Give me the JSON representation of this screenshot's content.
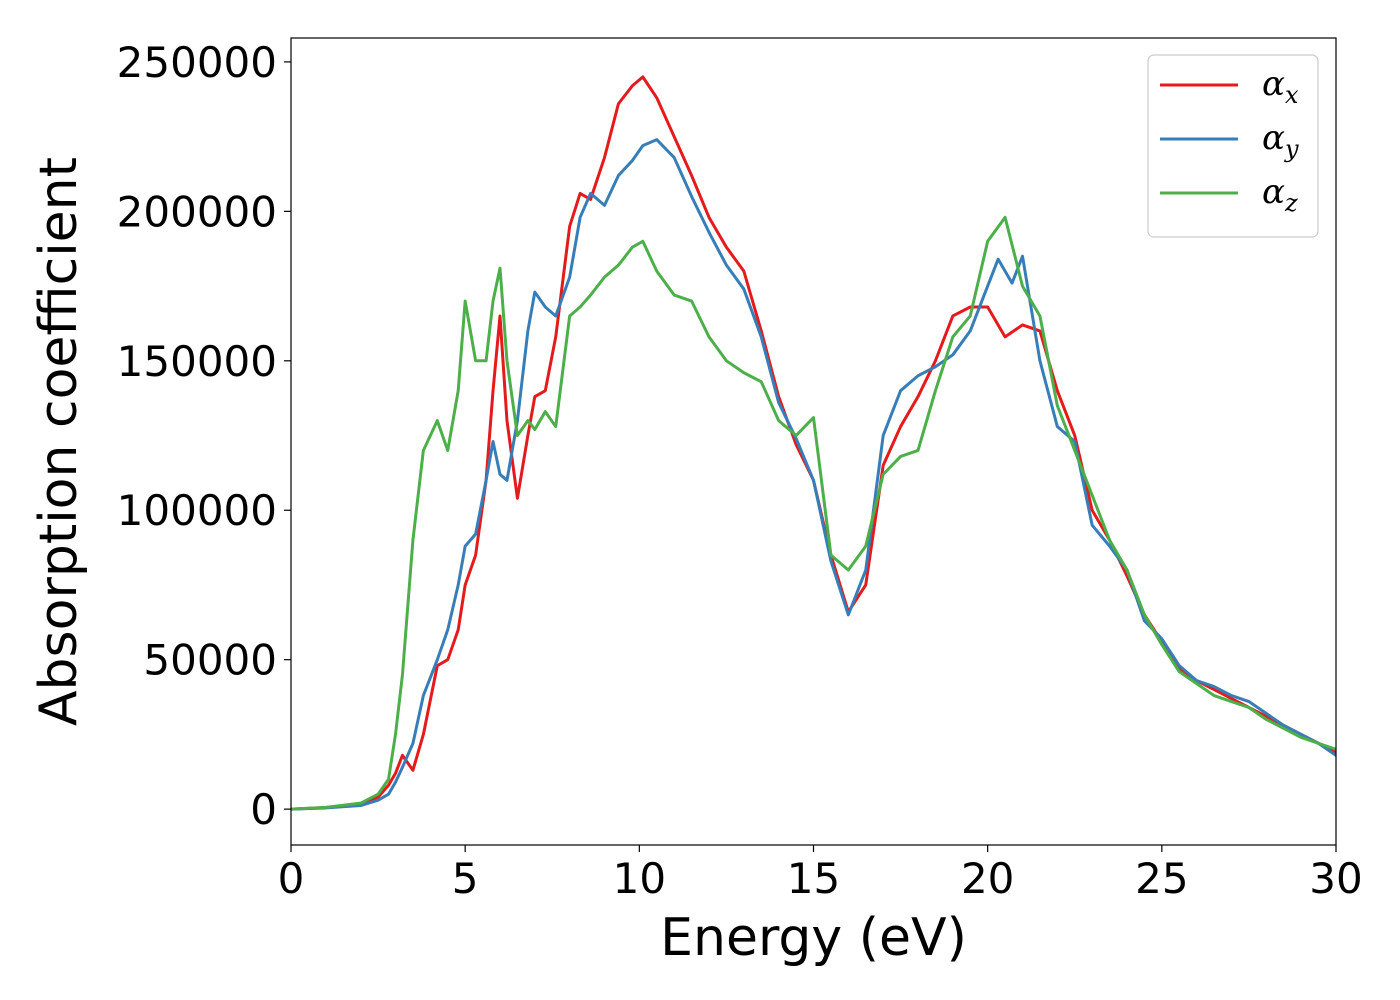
{
  "chart_data": {
    "type": "line",
    "xlabel": "Energy (eV)",
    "ylabel": "Absorption coefficient",
    "xlim": [
      0,
      30
    ],
    "ylim": [
      -12000,
      258000
    ],
    "xticks": [
      0,
      5,
      10,
      15,
      20,
      25,
      30
    ],
    "yticks": [
      0,
      50000,
      100000,
      150000,
      200000,
      250000
    ],
    "grid": false,
    "legend_position": "top-right",
    "series": [
      {
        "name": "α_x",
        "legend_base": "α",
        "legend_sub": "x",
        "color": "#e41a1c",
        "x": [
          0,
          1,
          2,
          2.5,
          2.8,
          3.0,
          3.2,
          3.5,
          3.8,
          4.2,
          4.5,
          4.8,
          5.0,
          5.3,
          5.6,
          5.8,
          6.0,
          6.2,
          6.5,
          6.8,
          7.0,
          7.3,
          7.6,
          8.0,
          8.3,
          8.6,
          9.0,
          9.4,
          9.8,
          10.1,
          10.5,
          11.0,
          11.5,
          12.0,
          12.5,
          13.0,
          13.5,
          14.0,
          14.5,
          15.0,
          15.5,
          16.0,
          16.5,
          17.0,
          17.5,
          18.0,
          18.5,
          19.0,
          19.5,
          20.0,
          20.5,
          21.0,
          21.5,
          22.0,
          22.5,
          23.0,
          23.5,
          24.0,
          24.5,
          25.0,
          25.5,
          26.0,
          26.5,
          27.0,
          27.5,
          28.0,
          28.5,
          29.0,
          29.5,
          30.0
        ],
        "y": [
          0,
          500,
          1500,
          4000,
          8000,
          12000,
          18000,
          13000,
          25000,
          48000,
          50000,
          60000,
          75000,
          85000,
          110000,
          140000,
          165000,
          130000,
          104000,
          125000,
          138000,
          140000,
          158000,
          195000,
          206000,
          204000,
          218000,
          236000,
          242000,
          245000,
          238000,
          225000,
          212000,
          198000,
          188000,
          180000,
          160000,
          138000,
          122000,
          110000,
          85000,
          66000,
          75000,
          115000,
          128000,
          138000,
          150000,
          165000,
          168000,
          168000,
          158000,
          162000,
          160000,
          140000,
          125000,
          100000,
          90000,
          78000,
          65000,
          56000,
          47000,
          43000,
          40000,
          37000,
          34000,
          31000,
          28000,
          25000,
          22000,
          19000
        ]
      },
      {
        "name": "α_y",
        "legend_base": "α",
        "legend_sub": "y",
        "color": "#377eb8",
        "x": [
          0,
          1,
          2,
          2.5,
          2.8,
          3.0,
          3.2,
          3.5,
          3.8,
          4.2,
          4.5,
          4.8,
          5.0,
          5.3,
          5.6,
          5.8,
          6.0,
          6.2,
          6.5,
          6.8,
          7.0,
          7.3,
          7.6,
          8.0,
          8.3,
          8.6,
          9.0,
          9.4,
          9.8,
          10.1,
          10.5,
          11.0,
          11.5,
          12.0,
          12.5,
          13.0,
          13.5,
          14.0,
          14.5,
          15.0,
          15.5,
          16.0,
          16.5,
          17.0,
          17.5,
          18.0,
          18.5,
          19.0,
          19.5,
          20.0,
          20.3,
          20.7,
          21.0,
          21.5,
          22.0,
          22.5,
          23.0,
          23.5,
          24.0,
          24.5,
          25.0,
          25.5,
          26.0,
          26.5,
          27.0,
          27.5,
          28.0,
          28.5,
          29.0,
          29.5,
          30.0
        ],
        "y": [
          0,
          400,
          1200,
          3000,
          5000,
          9000,
          14000,
          22000,
          38000,
          50000,
          60000,
          75000,
          88000,
          92000,
          110000,
          123000,
          112000,
          110000,
          130000,
          160000,
          173000,
          168000,
          165000,
          178000,
          198000,
          206000,
          202000,
          212000,
          217000,
          222000,
          224000,
          218000,
          205000,
          193000,
          182000,
          174000,
          158000,
          136000,
          124000,
          110000,
          83000,
          65000,
          80000,
          125000,
          140000,
          145000,
          148000,
          152000,
          160000,
          175000,
          184000,
          176000,
          185000,
          150000,
          128000,
          123000,
          95000,
          88000,
          80000,
          63000,
          57000,
          48000,
          43000,
          41000,
          38000,
          36000,
          32000,
          28000,
          25000,
          22000,
          18000
        ]
      },
      {
        "name": "α_z",
        "legend_base": "α",
        "legend_sub": "z",
        "color": "#4daf4a",
        "x": [
          0,
          1,
          2,
          2.5,
          2.8,
          3.0,
          3.2,
          3.5,
          3.8,
          4.2,
          4.5,
          4.8,
          5.0,
          5.3,
          5.6,
          5.8,
          6.0,
          6.2,
          6.5,
          6.8,
          7.0,
          7.3,
          7.6,
          8.0,
          8.3,
          8.6,
          9.0,
          9.4,
          9.8,
          10.1,
          10.5,
          11.0,
          11.5,
          12.0,
          12.5,
          13.0,
          13.5,
          14.0,
          14.5,
          15.0,
          15.5,
          16.0,
          16.5,
          17.0,
          17.5,
          18.0,
          18.5,
          19.0,
          19.5,
          20.0,
          20.5,
          21.0,
          21.5,
          22.0,
          22.5,
          23.0,
          23.5,
          24.0,
          24.5,
          25.0,
          25.5,
          26.0,
          26.5,
          27.0,
          27.5,
          28.0,
          28.5,
          29.0,
          29.5,
          30.0
        ],
        "y": [
          0,
          600,
          2000,
          5000,
          10000,
          25000,
          45000,
          90000,
          120000,
          130000,
          120000,
          140000,
          170000,
          150000,
          150000,
          170000,
          181000,
          150000,
          125000,
          130000,
          127000,
          133000,
          128000,
          165000,
          168000,
          172000,
          178000,
          182000,
          188000,
          190000,
          180000,
          172000,
          170000,
          158000,
          150000,
          146000,
          143000,
          130000,
          125000,
          131000,
          85000,
          80000,
          88000,
          112000,
          118000,
          120000,
          140000,
          158000,
          165000,
          190000,
          198000,
          175000,
          165000,
          135000,
          120000,
          105000,
          90000,
          80000,
          65000,
          55000,
          46000,
          42000,
          38000,
          36000,
          34000,
          30000,
          27000,
          24000,
          22000,
          20000
        ]
      }
    ]
  }
}
